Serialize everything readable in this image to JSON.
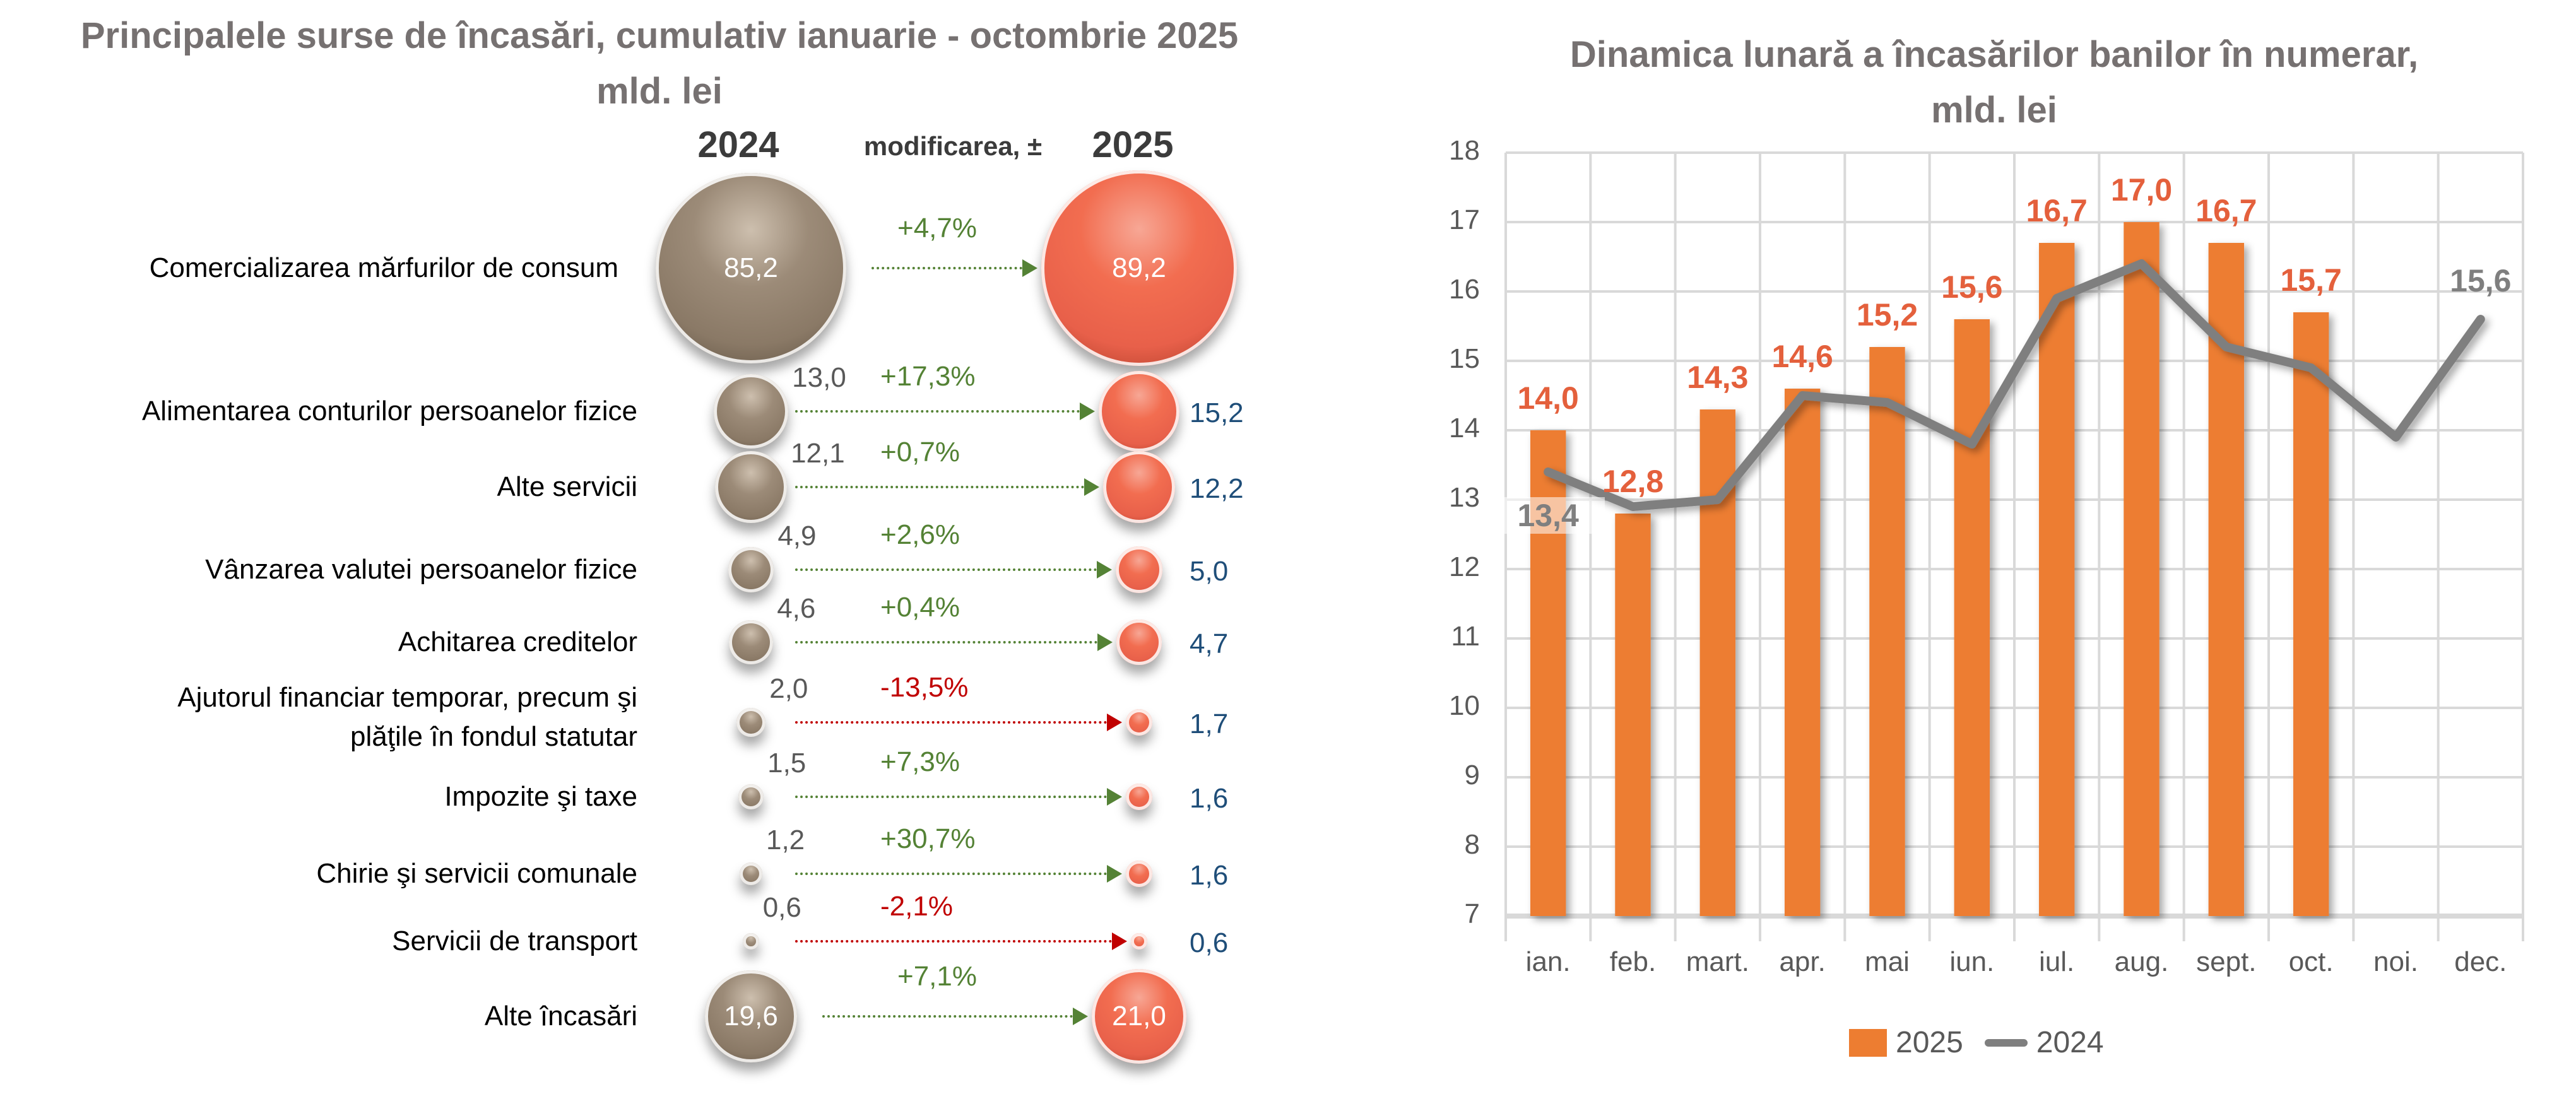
{
  "left_panel": {
    "title_line1": "Principalele surse de încasări, cumulativ ianuarie - octombrie 2025",
    "title_line2": "mld. lei",
    "header_2024": "2024",
    "header_change": "modificarea, ±",
    "header_2025": "2025",
    "colors": {
      "bubble_2024": "#9c8b78",
      "bubble_2025": "#f26d50",
      "positive": "#548235",
      "negative": "#c00000",
      "value_2025": "#1f4e79"
    },
    "rows": [
      {
        "label": "Comercializarea mărfurilor de consum",
        "v2024": "85,2",
        "change": "+4,7%",
        "v2025": "89,2",
        "v2024_num": 85.2,
        "v2025_num": 89.2,
        "sign": "pos",
        "inside": true
      },
      {
        "label": "Alimentarea conturilor persoanelor fizice",
        "v2024": "13,0",
        "change": "+17,3%",
        "v2025": "15,2",
        "v2024_num": 13.0,
        "v2025_num": 15.2,
        "sign": "pos",
        "inside": false
      },
      {
        "label": "Alte servicii",
        "v2024": "12,1",
        "change": "+0,7%",
        "v2025": "12,2",
        "v2024_num": 12.1,
        "v2025_num": 12.2,
        "sign": "pos",
        "inside": false
      },
      {
        "label": "Vânzarea valutei persoanelor fizice",
        "v2024": "4,9",
        "change": "+2,6%",
        "v2025": "5,0",
        "v2024_num": 4.9,
        "v2025_num": 5.0,
        "sign": "pos",
        "inside": false
      },
      {
        "label": "Achitarea creditelor",
        "v2024": "4,6",
        "change": "+0,4%",
        "v2025": "4,7",
        "v2024_num": 4.6,
        "v2025_num": 4.7,
        "sign": "pos",
        "inside": false
      },
      {
        "label": "Ajutorul financiar temporar, precum şi",
        "label2": "plăţile în fondul statutar",
        "v2024": "2,0",
        "change": "-13,5%",
        "v2025": "1,7",
        "v2024_num": 2.0,
        "v2025_num": 1.7,
        "sign": "neg",
        "inside": false
      },
      {
        "label": "Impozite şi taxe",
        "v2024": "1,5",
        "change": "+7,3%",
        "v2025": "1,6",
        "v2024_num": 1.5,
        "v2025_num": 1.6,
        "sign": "pos",
        "inside": false
      },
      {
        "label": "Chirie şi servicii comunale",
        "v2024": "1,2",
        "change": "+30,7%",
        "v2025": "1,6",
        "v2024_num": 1.2,
        "v2025_num": 1.6,
        "sign": "pos",
        "inside": false
      },
      {
        "label": "Servicii de transport",
        "v2024": "0,6",
        "change": "-2,1%",
        "v2025": "0,6",
        "v2024_num": 0.6,
        "v2025_num": 0.6,
        "sign": "neg",
        "inside": false
      },
      {
        "label": "Alte încasări",
        "v2024": "19,6",
        "change": "+7,1%",
        "v2025": "21,0",
        "v2024_num": 19.6,
        "v2025_num": 21.0,
        "sign": "pos",
        "inside": true
      }
    ]
  },
  "chart_data": {
    "type": "bar",
    "title": "Dinamica lunară a încasărilor banilor în numerar, mld. lei",
    "title_line1": "Dinamica lunară a încasărilor banilor în numerar,",
    "title_line2": "mld. lei",
    "xlabel": "",
    "ylabel": "",
    "ylim": [
      7,
      18
    ],
    "yticks": [
      "18",
      "17",
      "16",
      "15",
      "14",
      "13",
      "12",
      "11",
      "10",
      "9",
      "8",
      "7"
    ],
    "grid": true,
    "legend_position": "bottom",
    "categories": [
      "ian.",
      "feb.",
      "mart.",
      "apr.",
      "mai",
      "iun.",
      "iul.",
      "aug.",
      "sept.",
      "oct.",
      "noi.",
      "dec."
    ],
    "series": [
      {
        "name": "2025",
        "type": "bar",
        "color": "#ed7d31",
        "label_color": "#e4603c",
        "values": [
          14.0,
          12.8,
          14.3,
          14.6,
          15.2,
          15.6,
          16.7,
          17.0,
          16.7,
          15.7,
          null,
          null
        ],
        "labels": [
          "14,0",
          "12,8",
          "14,3",
          "14,6",
          "15,2",
          "15,6",
          "16,7",
          "17,0",
          "16,7",
          "15,7",
          "",
          ""
        ]
      },
      {
        "name": "2024",
        "type": "line",
        "color": "#7f7f7f",
        "values": [
          13.4,
          12.9,
          13.0,
          14.5,
          14.4,
          13.8,
          15.9,
          16.4,
          15.2,
          14.9,
          13.9,
          15.6
        ],
        "labels": [
          "13,4",
          "",
          "",
          "",
          "",
          "",
          "",
          "",
          "",
          "",
          "",
          "15,6"
        ]
      }
    ]
  }
}
